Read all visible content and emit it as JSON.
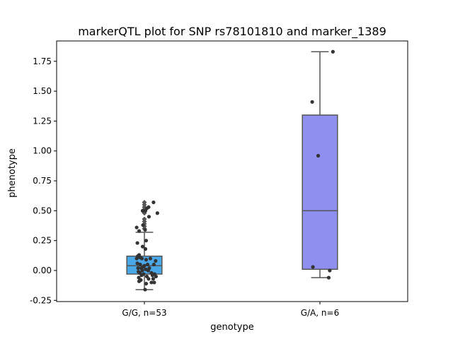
{
  "chart_data": {
    "type": "box",
    "title": "markerQTL plot for SNP rs78101810 and marker_1389",
    "xlabel": "genotype",
    "ylabel": "phenotype",
    "ylim": [
      -0.26,
      1.92
    ],
    "yticks": [
      "-0.25",
      "0.00",
      "0.25",
      "0.50",
      "0.75",
      "1.00",
      "1.25",
      "1.50",
      "1.75"
    ],
    "categories": [
      "G/G, n=53",
      "G/A, n=6"
    ],
    "colors": {
      "box_fill": [
        "#4aa8e8",
        "#8f8ff0"
      ],
      "line": "#555555",
      "point": "#333333",
      "outlier": "#555555"
    },
    "boxes": [
      {
        "category": "G/G, n=53",
        "whisker_low": -0.16,
        "q1": -0.03,
        "median": 0.04,
        "q3": 0.12,
        "whisker_high": 0.32,
        "outliers": [
          0.35,
          0.37,
          0.39,
          0.41,
          0.43,
          0.48,
          0.51,
          0.53,
          0.55,
          0.57
        ],
        "points": [
          {
            "x": 0.26,
            "y": 0.57
          },
          {
            "x": 0.12,
            "y": 0.53
          },
          {
            "x": 0.07,
            "y": 0.52
          },
          {
            "x": 0.03,
            "y": 0.5
          },
          {
            "x": -0.05,
            "y": 0.5
          },
          {
            "x": 0.13,
            "y": 0.45
          },
          {
            "x": 0.37,
            "y": 0.48
          },
          {
            "x": -0.22,
            "y": 0.36
          },
          {
            "x": -0.04,
            "y": 0.38
          },
          {
            "x": -0.15,
            "y": 0.33
          },
          {
            "x": 0.02,
            "y": 0.34
          },
          {
            "x": -0.2,
            "y": 0.23
          },
          {
            "x": 0.05,
            "y": 0.25
          },
          {
            "x": -0.05,
            "y": 0.2
          },
          {
            "x": 0.03,
            "y": 0.18
          },
          {
            "x": -0.15,
            "y": 0.13
          },
          {
            "x": -0.22,
            "y": 0.1
          },
          {
            "x": -0.19,
            "y": 0.12
          },
          {
            "x": -0.13,
            "y": 0.11
          },
          {
            "x": -0.07,
            "y": 0.1
          },
          {
            "x": 0.17,
            "y": 0.1
          },
          {
            "x": 0.05,
            "y": 0.09
          },
          {
            "x": 0.32,
            "y": 0.08
          },
          {
            "x": -0.2,
            "y": 0.06
          },
          {
            "x": -0.12,
            "y": 0.05
          },
          {
            "x": 0.0,
            "y": 0.04
          },
          {
            "x": 0.09,
            "y": 0.05
          },
          {
            "x": 0.27,
            "y": 0.05
          },
          {
            "x": -0.18,
            "y": 0.02
          },
          {
            "x": -0.09,
            "y": 0.02
          },
          {
            "x": -0.03,
            "y": 0.03
          },
          {
            "x": 0.14,
            "y": 0.02
          },
          {
            "x": -0.17,
            "y": -0.01
          },
          {
            "x": -0.06,
            "y": 0.0
          },
          {
            "x": 0.04,
            "y": 0.01
          },
          {
            "x": 0.11,
            "y": 0.0
          },
          {
            "x": -0.13,
            "y": -0.02
          },
          {
            "x": 0.2,
            "y": -0.02
          },
          {
            "x": -0.02,
            "y": -0.03
          },
          {
            "x": 0.29,
            "y": -0.03
          },
          {
            "x": -0.08,
            "y": -0.04
          },
          {
            "x": 0.23,
            "y": -0.04
          },
          {
            "x": 0.33,
            "y": -0.05
          },
          {
            "x": 0.07,
            "y": -0.05
          },
          {
            "x": -0.16,
            "y": -0.06
          },
          {
            "x": 0.12,
            "y": -0.07
          },
          {
            "x": -0.1,
            "y": -0.08
          },
          {
            "x": 0.25,
            "y": -0.07
          },
          {
            "x": -0.15,
            "y": -0.09
          },
          {
            "x": 0.2,
            "y": -0.1
          },
          {
            "x": 0.28,
            "y": -0.1
          },
          {
            "x": 0.05,
            "y": -0.11
          },
          {
            "x": 0.02,
            "y": -0.16
          }
        ]
      },
      {
        "category": "G/A, n=6",
        "whisker_low": -0.06,
        "q1": 0.01,
        "median": 0.5,
        "q3": 1.3,
        "whisker_high": 1.83,
        "outliers": [],
        "points": [
          {
            "x": 0.37,
            "y": 1.83
          },
          {
            "x": -0.22,
            "y": 1.41
          },
          {
            "x": -0.05,
            "y": 0.96
          },
          {
            "x": -0.2,
            "y": 0.03
          },
          {
            "x": 0.28,
            "y": 0.0
          },
          {
            "x": 0.25,
            "y": -0.06
          }
        ]
      }
    ]
  }
}
